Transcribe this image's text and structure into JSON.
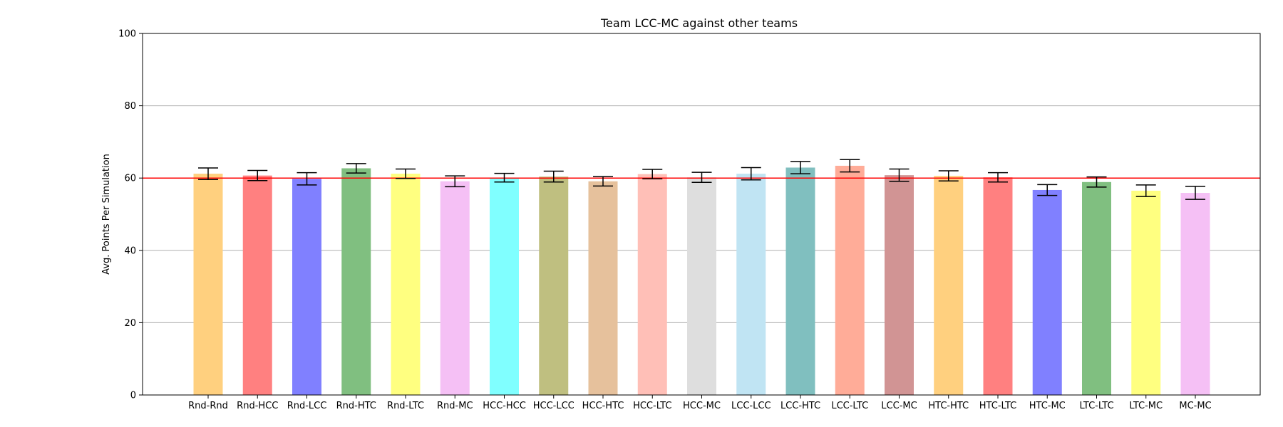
{
  "chart_data": {
    "type": "bar",
    "title": "Team LCC-MC against other teams",
    "xlabel": "",
    "ylabel": "Avg. Points Per Simulation",
    "ylim": [
      0,
      100
    ],
    "yticks": [
      0,
      20,
      40,
      60,
      80,
      100
    ],
    "grid": "horizontal",
    "reference_line": {
      "value": 60,
      "color": "#ff0000"
    },
    "categories": [
      "Rnd-Rnd",
      "Rnd-HCC",
      "Rnd-LCC",
      "Rnd-HTC",
      "Rnd-LTC",
      "Rnd-MC",
      "HCC-HCC",
      "HCC-LCC",
      "HCC-HTC",
      "HCC-LTC",
      "HCC-MC",
      "LCC-LCC",
      "LCC-HTC",
      "LCC-LTC",
      "LCC-MC",
      "HTC-HTC",
      "HTC-LTC",
      "HTC-MC",
      "LTC-LTC",
      "LTC-MC",
      "MC-MC"
    ],
    "values": [
      61.2,
      60.7,
      59.8,
      62.7,
      61.2,
      59.1,
      60.1,
      60.4,
      59.1,
      61.1,
      60.2,
      61.2,
      62.9,
      63.4,
      60.8,
      60.6,
      60.2,
      56.7,
      58.9,
      56.5,
      55.9
    ],
    "errors": [
      1.6,
      1.4,
      1.7,
      1.3,
      1.3,
      1.5,
      1.2,
      1.5,
      1.3,
      1.3,
      1.4,
      1.7,
      1.7,
      1.7,
      1.7,
      1.4,
      1.3,
      1.5,
      1.4,
      1.6,
      1.8
    ],
    "colors": [
      "#ffd07f",
      "#ff8080",
      "#8080ff",
      "#80bf80",
      "#ffff80",
      "#f5c0f5",
      "#80ffff",
      "#bfbf80",
      "#e6c19c",
      "#ffbfb7",
      "#dedede",
      "#c0e4f3",
      "#80bfbf",
      "#ffac98",
      "#d19494",
      "#ffd07f",
      "#ff8080",
      "#8080ff",
      "#80bf80",
      "#ffff80",
      "#f5c0f5"
    ]
  }
}
